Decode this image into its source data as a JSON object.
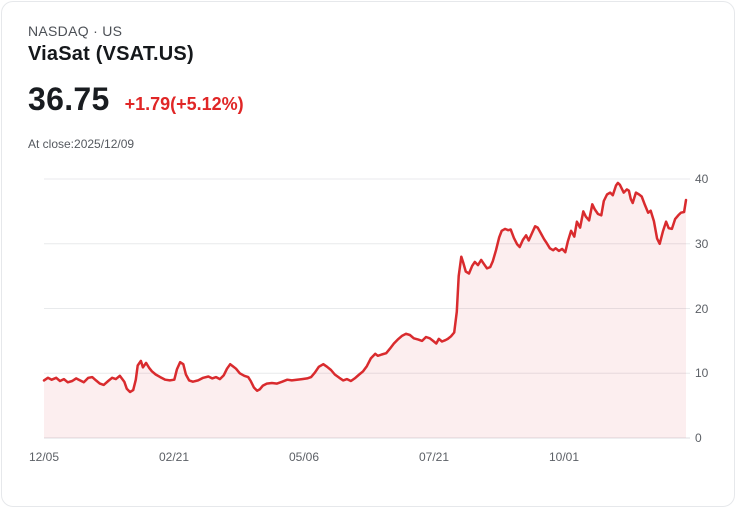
{
  "header": {
    "exchange_line": "NASDAQ · US",
    "title": "ViaSat (VSAT.US)",
    "price": "36.75",
    "change": "+1.79(+5.12%)",
    "as_of": "At close:2025/12/09"
  },
  "colors": {
    "accent_red": "#d92b2e",
    "change_red": "#e02626",
    "area_fill": "rgba(217,43,46,0.08)",
    "grid": "#e8eaec",
    "baseline": "#dcdee1",
    "axis_text": "#5c6066"
  },
  "chart_data": {
    "type": "area",
    "title": "ViaSat (VSAT.US) 1-year price chart",
    "xlabel": "",
    "ylabel": "",
    "ylim": [
      0,
      40
    ],
    "grid": "horizontal",
    "legend": "none",
    "y_ticks": [
      40,
      30,
      20,
      10,
      0
    ],
    "y_tick_labels": [
      "40",
      "30",
      "20",
      "10",
      "0"
    ],
    "x_tick_labels": [
      "12/05",
      "02/21",
      "05/06",
      "07/21",
      "10/01"
    ],
    "x_tick_pos": [
      0,
      20.25,
      40.5,
      60.75,
      81.0
    ],
    "series": [
      {
        "name": "VSAT.US",
        "color": "#d92b2e",
        "points": [
          [
            0,
            8.9
          ],
          [
            0.6,
            9.3
          ],
          [
            1.2,
            9.0
          ],
          [
            1.9,
            9.3
          ],
          [
            2.5,
            8.8
          ],
          [
            3.1,
            9.1
          ],
          [
            3.7,
            8.6
          ],
          [
            4.4,
            8.8
          ],
          [
            5.0,
            9.2
          ],
          [
            5.6,
            8.9
          ],
          [
            6.2,
            8.6
          ],
          [
            6.9,
            9.3
          ],
          [
            7.5,
            9.4
          ],
          [
            8.1,
            8.9
          ],
          [
            8.7,
            8.4
          ],
          [
            9.3,
            8.2
          ],
          [
            10.0,
            8.8
          ],
          [
            10.6,
            9.3
          ],
          [
            11.2,
            9.1
          ],
          [
            11.8,
            9.6
          ],
          [
            12.5,
            8.7
          ],
          [
            12.9,
            7.6
          ],
          [
            13.4,
            7.1
          ],
          [
            13.9,
            7.4
          ],
          [
            14.3,
            9.0
          ],
          [
            14.6,
            11.2
          ],
          [
            15.1,
            11.9
          ],
          [
            15.4,
            10.9
          ],
          [
            15.9,
            11.6
          ],
          [
            16.4,
            10.8
          ],
          [
            16.8,
            10.3
          ],
          [
            17.4,
            9.8
          ],
          [
            18.1,
            9.4
          ],
          [
            18.9,
            9.0
          ],
          [
            19.6,
            8.9
          ],
          [
            20.3,
            9.0
          ],
          [
            20.7,
            10.6
          ],
          [
            21.2,
            11.7
          ],
          [
            21.7,
            11.4
          ],
          [
            22.1,
            9.8
          ],
          [
            22.6,
            8.9
          ],
          [
            23.2,
            8.7
          ],
          [
            24.0,
            8.9
          ],
          [
            24.8,
            9.3
          ],
          [
            25.6,
            9.5
          ],
          [
            26.2,
            9.2
          ],
          [
            26.8,
            9.4
          ],
          [
            27.4,
            9.1
          ],
          [
            28.0,
            9.7
          ],
          [
            28.5,
            10.7
          ],
          [
            29.0,
            11.4
          ],
          [
            29.4,
            11.1
          ],
          [
            29.9,
            10.7
          ],
          [
            30.5,
            10.0
          ],
          [
            31.2,
            9.6
          ],
          [
            31.8,
            9.4
          ],
          [
            32.2,
            8.8
          ],
          [
            32.7,
            7.8
          ],
          [
            33.2,
            7.3
          ],
          [
            33.6,
            7.5
          ],
          [
            34.1,
            8.1
          ],
          [
            34.7,
            8.4
          ],
          [
            35.5,
            8.5
          ],
          [
            36.3,
            8.4
          ],
          [
            37.1,
            8.7
          ],
          [
            37.9,
            9.0
          ],
          [
            38.6,
            8.9
          ],
          [
            39.4,
            9.0
          ],
          [
            40.2,
            9.1
          ],
          [
            41.0,
            9.2
          ],
          [
            41.6,
            9.4
          ],
          [
            42.2,
            10.1
          ],
          [
            42.8,
            11.0
          ],
          [
            43.5,
            11.4
          ],
          [
            44.1,
            11.0
          ],
          [
            44.7,
            10.5
          ],
          [
            45.3,
            9.8
          ],
          [
            46.0,
            9.3
          ],
          [
            46.6,
            8.9
          ],
          [
            47.2,
            9.1
          ],
          [
            47.8,
            8.8
          ],
          [
            48.4,
            9.2
          ],
          [
            49.1,
            9.8
          ],
          [
            49.7,
            10.3
          ],
          [
            50.3,
            11.1
          ],
          [
            50.9,
            12.3
          ],
          [
            51.6,
            13.0
          ],
          [
            52.0,
            12.7
          ],
          [
            52.6,
            12.9
          ],
          [
            53.3,
            13.1
          ],
          [
            53.9,
            13.8
          ],
          [
            54.5,
            14.6
          ],
          [
            55.1,
            15.2
          ],
          [
            55.8,
            15.8
          ],
          [
            56.4,
            16.1
          ],
          [
            57.0,
            15.9
          ],
          [
            57.6,
            15.4
          ],
          [
            58.3,
            15.2
          ],
          [
            58.9,
            15.0
          ],
          [
            59.5,
            15.6
          ],
          [
            60.1,
            15.4
          ],
          [
            60.6,
            15.0
          ],
          [
            61.1,
            14.6
          ],
          [
            61.5,
            15.3
          ],
          [
            62.0,
            14.9
          ],
          [
            62.5,
            15.1
          ],
          [
            62.9,
            15.3
          ],
          [
            63.4,
            15.7
          ],
          [
            63.9,
            16.3
          ],
          [
            64.3,
            19.5
          ],
          [
            64.6,
            25.0
          ],
          [
            65.0,
            28.0
          ],
          [
            65.3,
            27.1
          ],
          [
            65.7,
            25.7
          ],
          [
            66.2,
            25.4
          ],
          [
            66.7,
            26.6
          ],
          [
            67.1,
            27.2
          ],
          [
            67.6,
            26.7
          ],
          [
            68.1,
            27.5
          ],
          [
            68.5,
            26.9
          ],
          [
            69.0,
            26.2
          ],
          [
            69.5,
            26.4
          ],
          [
            69.9,
            27.3
          ],
          [
            70.4,
            29.0
          ],
          [
            70.9,
            31.0
          ],
          [
            71.3,
            32.0
          ],
          [
            71.8,
            32.3
          ],
          [
            72.3,
            32.1
          ],
          [
            72.7,
            32.2
          ],
          [
            73.2,
            30.9
          ],
          [
            73.7,
            29.9
          ],
          [
            74.1,
            29.5
          ],
          [
            74.6,
            30.6
          ],
          [
            75.1,
            31.3
          ],
          [
            75.5,
            30.5
          ],
          [
            76.0,
            31.6
          ],
          [
            76.5,
            32.7
          ],
          [
            76.9,
            32.5
          ],
          [
            77.4,
            31.6
          ],
          [
            77.9,
            30.7
          ],
          [
            78.3,
            30.1
          ],
          [
            78.8,
            29.3
          ],
          [
            79.3,
            29.0
          ],
          [
            79.7,
            29.3
          ],
          [
            80.2,
            28.9
          ],
          [
            80.7,
            29.2
          ],
          [
            81.2,
            28.7
          ],
          [
            81.6,
            30.4
          ],
          [
            82.1,
            32.0
          ],
          [
            82.6,
            31.1
          ],
          [
            83.0,
            33.4
          ],
          [
            83.5,
            32.5
          ],
          [
            84.0,
            35.0
          ],
          [
            84.4,
            34.2
          ],
          [
            84.9,
            33.6
          ],
          [
            85.4,
            36.1
          ],
          [
            85.8,
            35.3
          ],
          [
            86.3,
            34.6
          ],
          [
            86.8,
            34.4
          ],
          [
            87.2,
            36.6
          ],
          [
            87.7,
            37.6
          ],
          [
            88.2,
            37.9
          ],
          [
            88.6,
            37.5
          ],
          [
            89.1,
            39.0
          ],
          [
            89.4,
            39.4
          ],
          [
            89.7,
            39.1
          ],
          [
            90.0,
            38.5
          ],
          [
            90.3,
            37.9
          ],
          [
            90.8,
            38.4
          ],
          [
            91.1,
            38.2
          ],
          [
            91.4,
            36.9
          ],
          [
            91.7,
            36.3
          ],
          [
            92.2,
            37.9
          ],
          [
            92.7,
            37.6
          ],
          [
            93.1,
            37.3
          ],
          [
            93.6,
            36.0
          ],
          [
            94.1,
            34.8
          ],
          [
            94.5,
            35.1
          ],
          [
            95.0,
            33.5
          ],
          [
            95.5,
            30.8
          ],
          [
            95.9,
            30.0
          ],
          [
            96.4,
            31.9
          ],
          [
            96.9,
            33.4
          ],
          [
            97.3,
            32.4
          ],
          [
            97.8,
            32.3
          ],
          [
            98.3,
            33.8
          ],
          [
            98.8,
            34.4
          ],
          [
            99.2,
            34.8
          ],
          [
            99.7,
            34.9
          ],
          [
            100,
            36.75
          ]
        ]
      }
    ]
  }
}
